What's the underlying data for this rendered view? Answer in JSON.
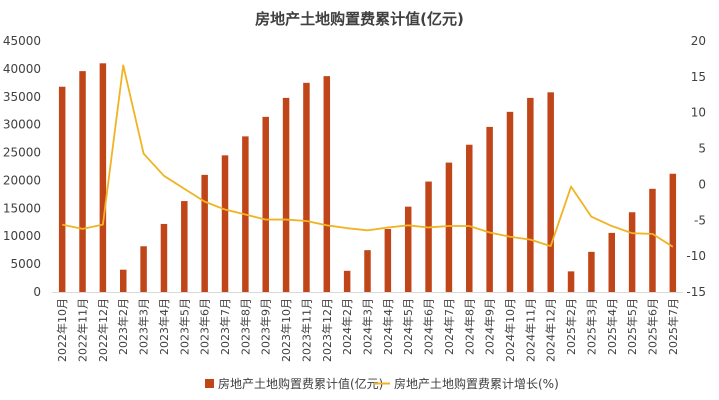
{
  "chart_data": {
    "type": "bar",
    "title": "房地产土地购置费累计值(亿元)",
    "categories": [
      "2022年10月",
      "2022年11月",
      "2022年12月",
      "2023年2月",
      "2023年3月",
      "2023年4月",
      "2023年5月",
      "2023年6月",
      "2023年7月",
      "2023年8月",
      "2023年9月",
      "2023年10月",
      "2023年11月",
      "2023年12月",
      "2024年2月",
      "2024年3月",
      "2024年4月",
      "2024年5月",
      "2024年6月",
      "2024年7月",
      "2024年8月",
      "2024年9月",
      "2024年10月",
      "2024年11月",
      "2024年12月",
      "2025年2月",
      "2025年3月",
      "2025年4月",
      "2025年5月",
      "2025年6月",
      "2025年7月"
    ],
    "series": [
      {
        "name": "房地产土地购置费累计值(亿元)",
        "type": "bar",
        "axis": "left",
        "color": "#C0461A",
        "values": [
          36800,
          39600,
          41000,
          4000,
          8200,
          12200,
          16300,
          21000,
          24500,
          27900,
          31400,
          34800,
          37500,
          38700,
          3800,
          7500,
          11300,
          15300,
          19800,
          23200,
          26400,
          29600,
          32300,
          34800,
          35800,
          3700,
          7200,
          10600,
          14300,
          18500,
          21200
        ]
      },
      {
        "name": "房地产土地购置费累计增长(%)",
        "type": "line",
        "axis": "right",
        "color": "#F0B323",
        "values": [
          -5.6,
          -6.2,
          -5.6,
          16.6,
          4.3,
          1.2,
          -0.6,
          -2.4,
          -3.5,
          -4.2,
          -4.9,
          -4.9,
          -5.1,
          -5.7,
          -6.1,
          -6.4,
          -6.0,
          -5.7,
          -6.0,
          -5.8,
          -5.8,
          -6.7,
          -7.3,
          -7.7,
          -8.6,
          -0.3,
          -4.5,
          -5.8,
          -6.8,
          -6.9,
          -8.7
        ]
      }
    ],
    "y_left_range": [
      0,
      45000
    ],
    "y_left_ticks": [
      "0",
      "5000",
      "10000",
      "15000",
      "20000",
      "25000",
      "30000",
      "35000",
      "40000",
      "45000"
    ],
    "y_right_range": [
      -15,
      20
    ],
    "y_right_ticks": [
      "-15",
      "-10",
      "-5",
      "0",
      "5",
      "10",
      "15",
      "20"
    ],
    "legend_position": "bottom",
    "grid": false
  }
}
